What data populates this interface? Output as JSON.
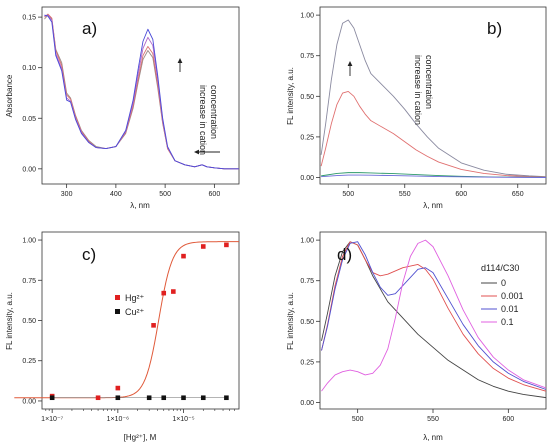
{
  "chart_data": [
    {
      "panel": "a)",
      "type": "line",
      "xlabel": "λ, nm",
      "ylabel": "Absorbance",
      "xlim": [
        250,
        650
      ],
      "ylim": [
        -0.015,
        0.16
      ],
      "xticks": [
        300,
        400,
        500,
        600
      ],
      "yticks": [
        0.0,
        0.05,
        0.1,
        0.15
      ],
      "xtick_labels": [
        "300",
        "400",
        "500",
        "600"
      ],
      "ytick_labels": [
        "0.00",
        "0.05",
        "0.10",
        "0.15"
      ],
      "annotations": [
        "increase in cation",
        "concentration"
      ],
      "series": [
        {
          "color": "#9b8a86",
          "x": [
            255,
            262,
            270,
            278,
            290,
            300,
            308,
            318,
            330,
            345,
            360,
            380,
            400,
            420,
            435,
            445,
            455,
            465,
            475,
            485,
            495,
            505,
            520,
            540,
            560,
            575,
            585,
            600,
            620,
            650
          ],
          "y": [
            0.148,
            0.152,
            0.148,
            0.118,
            0.105,
            0.075,
            0.07,
            0.053,
            0.038,
            0.028,
            0.022,
            0.02,
            0.022,
            0.035,
            0.06,
            0.085,
            0.108,
            0.117,
            0.11,
            0.08,
            0.045,
            0.02,
            0.008,
            0.004,
            0.002,
            0.004,
            0.002,
            0.001,
            0.0,
            0.0
          ]
        },
        {
          "color": "#d97070",
          "x": [
            255,
            262,
            270,
            278,
            290,
            300,
            308,
            318,
            330,
            345,
            360,
            380,
            400,
            420,
            435,
            445,
            455,
            465,
            475,
            485,
            495,
            505,
            520,
            540,
            560,
            575,
            585,
            600,
            620,
            650
          ],
          "y": [
            0.15,
            0.153,
            0.149,
            0.117,
            0.102,
            0.073,
            0.069,
            0.052,
            0.037,
            0.027,
            0.021,
            0.02,
            0.022,
            0.036,
            0.062,
            0.088,
            0.112,
            0.121,
            0.114,
            0.083,
            0.046,
            0.02,
            0.008,
            0.004,
            0.002,
            0.004,
            0.002,
            0.001,
            0.0,
            0.0
          ]
        },
        {
          "color": "#b068c8",
          "x": [
            255,
            262,
            270,
            278,
            290,
            300,
            308,
            318,
            330,
            345,
            360,
            380,
            400,
            420,
            435,
            445,
            455,
            465,
            475,
            485,
            495,
            505,
            520,
            540,
            560,
            575,
            585,
            600,
            620,
            650
          ],
          "y": [
            0.151,
            0.152,
            0.147,
            0.114,
            0.099,
            0.07,
            0.067,
            0.05,
            0.036,
            0.026,
            0.021,
            0.02,
            0.022,
            0.037,
            0.065,
            0.093,
            0.119,
            0.13,
            0.122,
            0.088,
            0.048,
            0.021,
            0.008,
            0.004,
            0.002,
            0.004,
            0.002,
            0.001,
            0.0,
            0.0
          ]
        },
        {
          "color": "#4a4ad8",
          "x": [
            255,
            262,
            270,
            278,
            290,
            300,
            308,
            318,
            330,
            345,
            360,
            380,
            400,
            420,
            435,
            445,
            455,
            465,
            475,
            485,
            495,
            505,
            520,
            540,
            560,
            575,
            585,
            600,
            620,
            650
          ],
          "y": [
            0.152,
            0.151,
            0.145,
            0.112,
            0.097,
            0.068,
            0.066,
            0.049,
            0.035,
            0.026,
            0.021,
            0.02,
            0.022,
            0.038,
            0.068,
            0.098,
            0.126,
            0.138,
            0.128,
            0.092,
            0.05,
            0.022,
            0.008,
            0.004,
            0.002,
            0.004,
            0.002,
            0.001,
            0.0,
            0.0
          ]
        }
      ]
    },
    {
      "panel": "b)",
      "type": "line",
      "xlabel": "λ, nm",
      "ylabel": "FL intensity, a.u.",
      "xlim": [
        475,
        675
      ],
      "ylim": [
        -0.04,
        1.05
      ],
      "xticks": [
        500,
        550,
        600,
        650
      ],
      "yticks": [
        0.0,
        0.25,
        0.5,
        0.75,
        1.0
      ],
      "xtick_labels": [
        "500",
        "550",
        "600",
        "650"
      ],
      "ytick_labels": [
        "0.00",
        "0.25",
        "0.50",
        "0.75",
        "1.00"
      ],
      "annotations": [
        "increase in cation",
        "concentration"
      ],
      "series": [
        {
          "color": "#8a8aa0",
          "x": [
            476,
            480,
            485,
            490,
            495,
            500,
            505,
            510,
            515,
            520,
            530,
            540,
            550,
            560,
            570,
            580,
            600,
            620,
            640,
            660,
            675
          ],
          "y": [
            0.14,
            0.33,
            0.6,
            0.82,
            0.95,
            0.97,
            0.92,
            0.82,
            0.72,
            0.64,
            0.57,
            0.5,
            0.42,
            0.33,
            0.25,
            0.18,
            0.09,
            0.045,
            0.02,
            0.01,
            0.005
          ]
        },
        {
          "color": "#e07070",
          "x": [
            476,
            480,
            485,
            490,
            495,
            500,
            505,
            510,
            515,
            520,
            530,
            540,
            550,
            560,
            570,
            580,
            600,
            620,
            640,
            660,
            675
          ],
          "y": [
            0.07,
            0.18,
            0.33,
            0.45,
            0.52,
            0.53,
            0.5,
            0.44,
            0.39,
            0.35,
            0.31,
            0.27,
            0.22,
            0.17,
            0.13,
            0.095,
            0.05,
            0.025,
            0.012,
            0.006,
            0.003
          ]
        },
        {
          "color": "#2f9a6a",
          "x": [
            476,
            490,
            500,
            510,
            520,
            540,
            560,
            580,
            600,
            630,
            675
          ],
          "y": [
            0.01,
            0.025,
            0.03,
            0.03,
            0.028,
            0.024,
            0.018,
            0.012,
            0.007,
            0.003,
            0.001
          ]
        },
        {
          "color": "#6a6ad8",
          "x": [
            476,
            490,
            500,
            510,
            520,
            540,
            560,
            580,
            600,
            630,
            675
          ],
          "y": [
            0.005,
            0.012,
            0.015,
            0.015,
            0.014,
            0.012,
            0.009,
            0.006,
            0.004,
            0.002,
            0.0
          ]
        }
      ]
    },
    {
      "panel": "c)",
      "type": "scatter",
      "x_scale": "log",
      "xlabel": "[Hg²⁺], M",
      "ylabel": "FL intensity, a.u.",
      "xlim": [
        7e-08,
        7e-05
      ],
      "ylim": [
        -0.05,
        1.05
      ],
      "xticks": [
        1e-07,
        1e-06,
        1e-05
      ],
      "yticks": [
        0.0,
        0.25,
        0.5,
        0.75,
        1.0
      ],
      "xtick_labels": [
        "1×10⁻⁷",
        "1×10⁻⁶",
        "1×10⁻⁵"
      ],
      "ytick_labels": [
        "0.00",
        "0.25",
        "0.50",
        "0.75",
        "1.00"
      ],
      "fit": {
        "color": "#e05a3a",
        "x0": 4.2e-06,
        "n": 4.2,
        "top": 0.99,
        "bottom": 0.02
      },
      "series": [
        {
          "name": "Hg²⁺",
          "color": "#e02020",
          "x": [
            1e-07,
            5e-07,
            1e-06,
            3.5e-06,
            5e-06,
            7e-06,
            1e-05,
            2e-05,
            4.5e-05
          ],
          "y": [
            0.03,
            0.02,
            0.08,
            0.47,
            0.67,
            0.68,
            0.9,
            0.96,
            0.97
          ]
        },
        {
          "name": "Cu²⁺",
          "color": "#111111",
          "x": [
            1e-07,
            1e-06,
            3e-06,
            5e-06,
            1e-05,
            2e-05,
            4.5e-05
          ],
          "y": [
            0.02,
            0.02,
            0.02,
            0.02,
            0.02,
            0.02,
            0.02
          ]
        }
      ]
    },
    {
      "panel": "d)",
      "type": "line",
      "xlabel": "λ, nm",
      "ylabel": "FL intensity, a.u.",
      "xlim": [
        475,
        625
      ],
      "ylim": [
        -0.04,
        1.05
      ],
      "xticks": [
        500,
        550,
        600
      ],
      "yticks": [
        0.0,
        0.25,
        0.5,
        0.75,
        1.0
      ],
      "xtick_labels": [
        "500",
        "550",
        "600"
      ],
      "ytick_labels": [
        "0.00",
        "0.25",
        "0.50",
        "0.75",
        "1.00"
      ],
      "legend_title": "d114/C30",
      "series": [
        {
          "name": "0",
          "color": "#444444",
          "x": [
            476,
            480,
            485,
            490,
            495,
            500,
            505,
            510,
            515,
            520,
            530,
            540,
            550,
            560,
            570,
            580,
            590,
            600,
            610,
            625
          ],
          "y": [
            0.38,
            0.55,
            0.78,
            0.93,
            0.99,
            0.97,
            0.88,
            0.78,
            0.7,
            0.62,
            0.52,
            0.42,
            0.34,
            0.26,
            0.2,
            0.14,
            0.1,
            0.07,
            0.05,
            0.03
          ]
        },
        {
          "name": "0.001",
          "color": "#e05050",
          "x": [
            476,
            480,
            485,
            490,
            495,
            500,
            505,
            510,
            515,
            520,
            530,
            540,
            545,
            550,
            560,
            570,
            580,
            590,
            600,
            610,
            625
          ],
          "y": [
            0.32,
            0.48,
            0.72,
            0.9,
            0.99,
            0.97,
            0.88,
            0.8,
            0.78,
            0.79,
            0.83,
            0.85,
            0.82,
            0.76,
            0.58,
            0.42,
            0.3,
            0.21,
            0.15,
            0.11,
            0.07
          ]
        },
        {
          "name": "0.01",
          "color": "#5050d0",
          "x": [
            476,
            480,
            485,
            490,
            495,
            500,
            505,
            510,
            515,
            520,
            525,
            530,
            540,
            545,
            550,
            560,
            570,
            580,
            590,
            600,
            610,
            625
          ],
          "y": [
            0.32,
            0.47,
            0.7,
            0.88,
            0.98,
            0.99,
            0.91,
            0.8,
            0.71,
            0.66,
            0.67,
            0.72,
            0.82,
            0.83,
            0.8,
            0.64,
            0.48,
            0.35,
            0.25,
            0.18,
            0.13,
            0.08
          ]
        },
        {
          "name": "0.1",
          "color": "#e060e0",
          "x": [
            476,
            480,
            485,
            490,
            495,
            500,
            505,
            510,
            515,
            520,
            525,
            530,
            535,
            540,
            545,
            550,
            560,
            570,
            580,
            590,
            600,
            610,
            625
          ],
          "y": [
            0.07,
            0.12,
            0.17,
            0.19,
            0.2,
            0.19,
            0.17,
            0.18,
            0.23,
            0.33,
            0.52,
            0.74,
            0.9,
            0.98,
            1.0,
            0.96,
            0.78,
            0.57,
            0.4,
            0.28,
            0.2,
            0.14,
            0.09
          ]
        }
      ]
    }
  ]
}
